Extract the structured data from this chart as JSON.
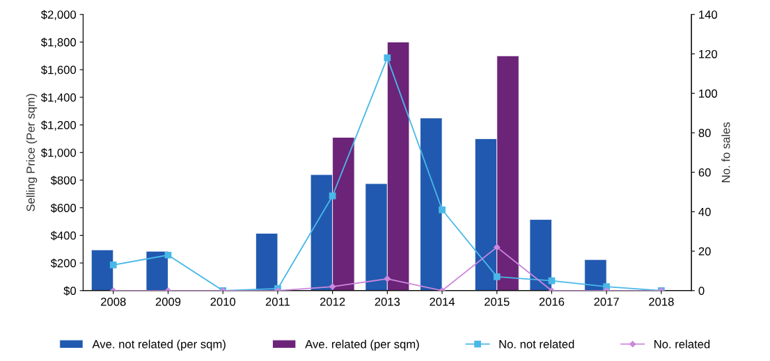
{
  "chart_data": {
    "type": "bar",
    "ylabel": "Selling Price (Per sqm)",
    "y2label": "No. fo sales",
    "categories": [
      "2008",
      "2009",
      "2010",
      "2011",
      "2012",
      "2013",
      "2014",
      "2015",
      "2016",
      "2017",
      "2018"
    ],
    "series": [
      {
        "name": "Ave. not related (per sqm)",
        "color": "#2159b0",
        "values": [
          295,
          285,
          null,
          415,
          840,
          775,
          1250,
          1100,
          515,
          225,
          null
        ]
      },
      {
        "name": "Ave. related (per sqm)",
        "color": "#6b2478",
        "values": [
          null,
          null,
          null,
          null,
          1110,
          1800,
          null,
          1700,
          null,
          null,
          null
        ]
      },
      {
        "name": "No. not related",
        "type": "line",
        "axis": "y2",
        "marker": "square",
        "color": "#49b8e8",
        "values": [
          13,
          18,
          0,
          1,
          48,
          118,
          41,
          7,
          5,
          2,
          0
        ]
      },
      {
        "name": "No. related",
        "type": "line",
        "axis": "y2",
        "marker": "diamond",
        "color": "#cc88dd",
        "values": [
          0,
          0,
          0,
          0,
          2,
          6,
          0,
          22,
          0,
          0,
          0
        ]
      }
    ],
    "ylim": [
      0,
      2000
    ],
    "yticks": [
      {
        "value": 0,
        "label": "$0"
      },
      {
        "value": 200,
        "label": "$200"
      },
      {
        "value": 400,
        "label": "$400"
      },
      {
        "value": 600,
        "label": "$600"
      },
      {
        "value": 800,
        "label": "$800"
      },
      {
        "value": 1000,
        "label": "$1,000"
      },
      {
        "value": 1200,
        "label": "$1,200"
      },
      {
        "value": 1400,
        "label": "$1,400"
      },
      {
        "value": 1600,
        "label": "$1,600"
      },
      {
        "value": 1800,
        "label": "$1,800"
      },
      {
        "value": 2000,
        "label": "$2,000"
      }
    ],
    "y2lim": [
      0,
      140
    ],
    "y2ticks": [
      0,
      20,
      40,
      60,
      80,
      100,
      120,
      140
    ],
    "grid": false,
    "legend": "bottom"
  }
}
